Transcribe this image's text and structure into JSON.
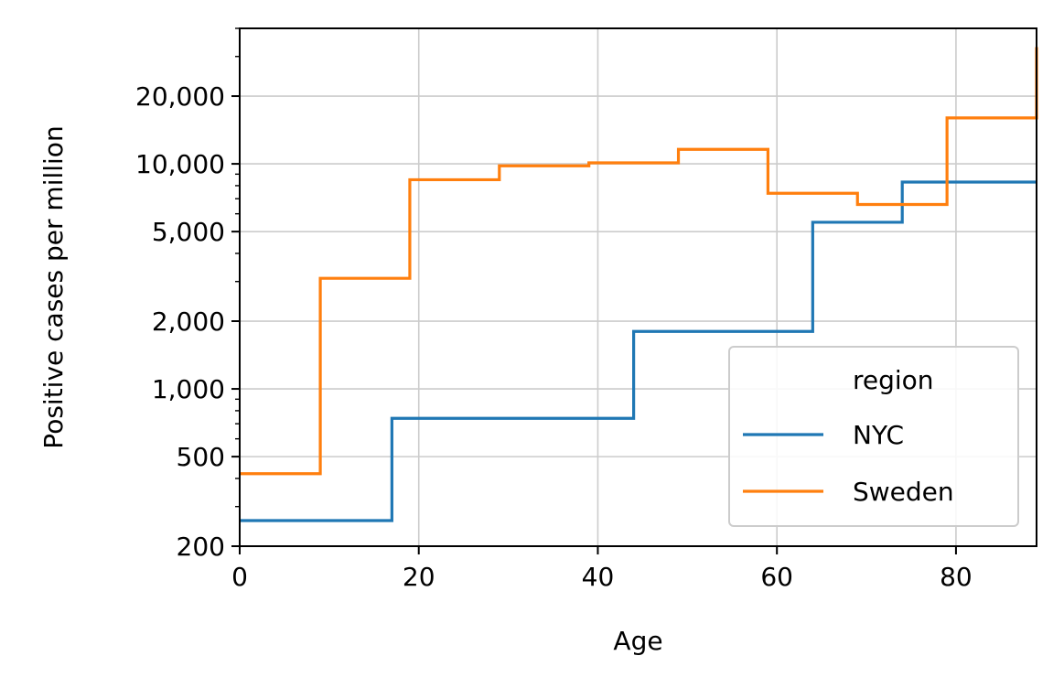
{
  "chart_data": {
    "type": "line",
    "step": true,
    "xlabel": "Age",
    "ylabel": "Positive cases per million",
    "xlim": [
      0,
      89
    ],
    "ylim": [
      200,
      40000
    ],
    "yscale": "log",
    "grid": true,
    "x_ticks": [
      0,
      20,
      40,
      60,
      80
    ],
    "x_tick_labels": [
      "0",
      "20",
      "40",
      "60",
      "80"
    ],
    "y_ticks": [
      200,
      500,
      1000,
      2000,
      5000,
      10000,
      20000
    ],
    "y_tick_labels": [
      "200",
      "500",
      "1,000",
      "2,000",
      "5,000",
      "10,000",
      "20,000"
    ],
    "legend": {
      "title": "region",
      "placement": "lower-right"
    },
    "series": [
      {
        "name": "NYC",
        "color": "#1f77b4",
        "x": [
          0,
          17,
          44,
          64,
          74,
          89
        ],
        "y": [
          260,
          740,
          1800,
          5500,
          8300,
          8300
        ]
      },
      {
        "name": "Sweden",
        "color": "#ff7f0e",
        "x": [
          0,
          9,
          19,
          29,
          39,
          49,
          59,
          69,
          79,
          89
        ],
        "y": [
          420,
          3100,
          8500,
          9800,
          10100,
          11600,
          7400,
          6600,
          16000,
          33000
        ]
      }
    ]
  }
}
